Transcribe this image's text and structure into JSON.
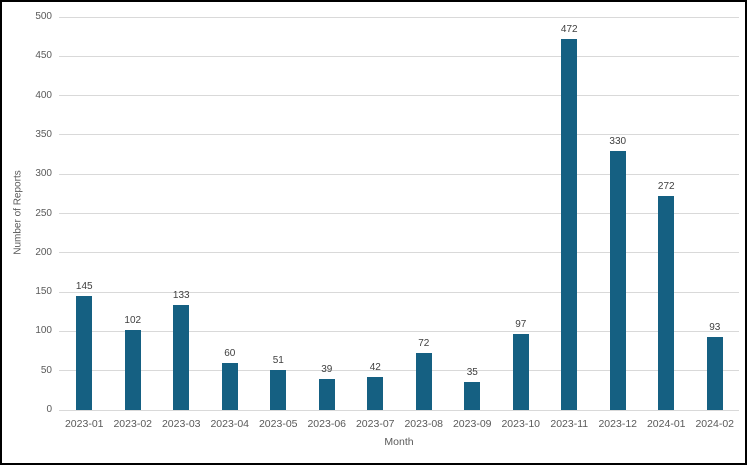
{
  "chart_data": {
    "type": "bar",
    "title": "",
    "xlabel": "Month",
    "ylabel": "Number of Reports",
    "categories": [
      "2023-01",
      "2023-02",
      "2023-03",
      "2023-04",
      "2023-05",
      "2023-06",
      "2023-07",
      "2023-08",
      "2023-09",
      "2023-10",
      "2023-11",
      "2023-12",
      "2024-01",
      "2024-02"
    ],
    "values": [
      145,
      102,
      133,
      60,
      51,
      39,
      42,
      72,
      35,
      97,
      472,
      330,
      272,
      93
    ],
    "data_labels": [
      145,
      102,
      133,
      60,
      51,
      39,
      42,
      72,
      35,
      97,
      472,
      330,
      272,
      93
    ],
    "ylim": [
      0,
      500
    ],
    "yticks": [
      0,
      50,
      100,
      150,
      200,
      250,
      300,
      350,
      400,
      450,
      500
    ],
    "grid": true,
    "legend": "none",
    "bar_color": "#156082"
  },
  "colors": {
    "background": "#ffffff",
    "frame_border": "#000000",
    "gridline": "#d9d9d9",
    "tick_label": "#595959",
    "data_label": "#404040"
  }
}
